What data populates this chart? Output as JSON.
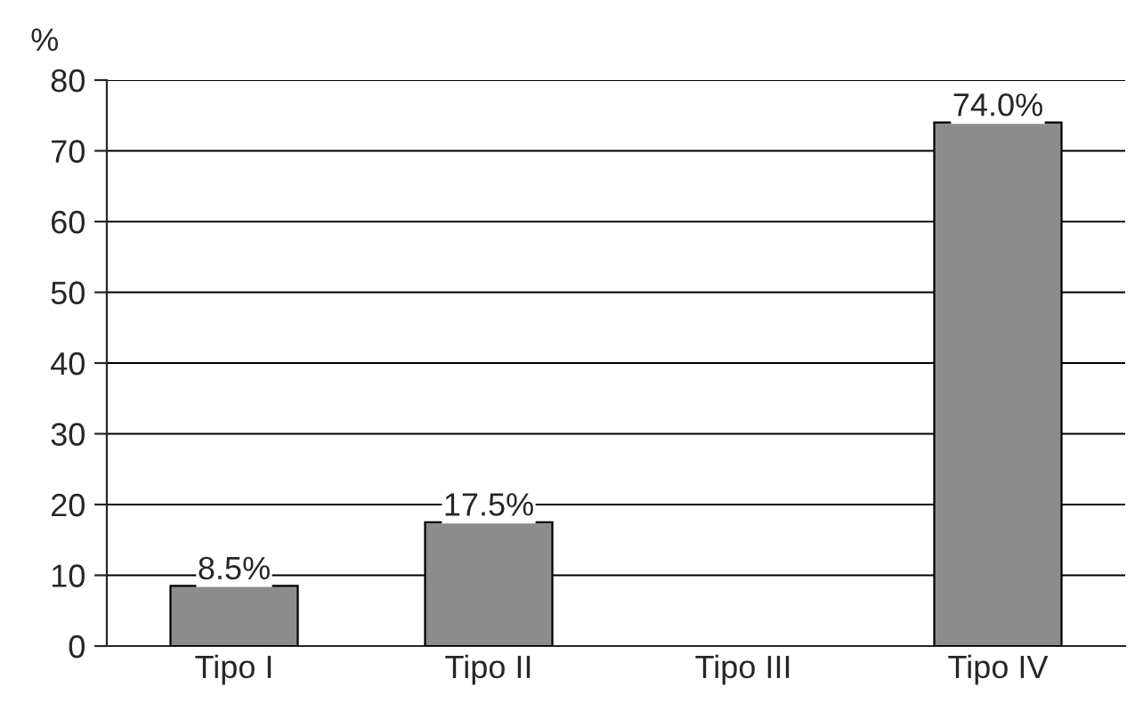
{
  "chart_data": {
    "type": "bar",
    "ylabel": "%",
    "categories": [
      "Tipo I",
      "Tipo II",
      "Tipo III",
      "Tipo IV"
    ],
    "values": [
      8.5,
      17.5,
      null,
      74.0
    ],
    "value_labels": [
      "8.5%",
      "17.5%",
      null,
      "74.0%"
    ],
    "color": "#8c8c8c",
    "ylim": [
      0,
      80
    ],
    "yticks": [
      0,
      10,
      20,
      30,
      40,
      50,
      60,
      70,
      80
    ],
    "grid": "y"
  }
}
